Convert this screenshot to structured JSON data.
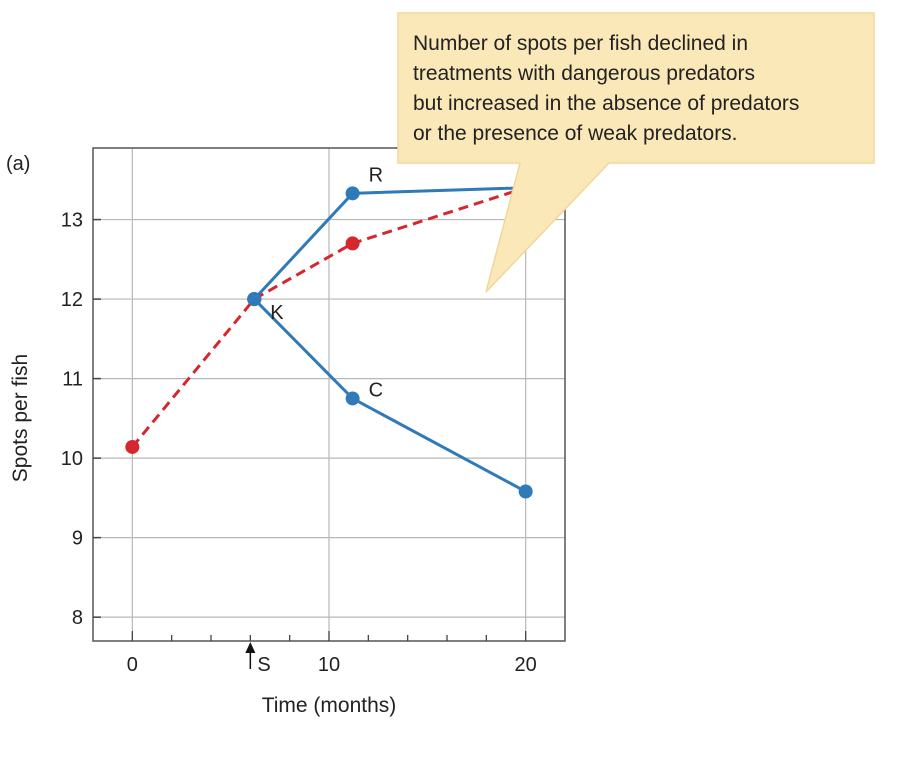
{
  "chart_data": {
    "type": "line",
    "panel_label": "(a)",
    "xlabel": "Time (months)",
    "ylabel": "Spots per fish",
    "xlim": [
      -2,
      22
    ],
    "ylim": [
      7.7,
      13.9
    ],
    "x_ticks": [
      0,
      10,
      20
    ],
    "y_ticks": [
      8,
      9,
      10,
      11,
      12,
      13
    ],
    "marker": {
      "x": 6,
      "label": "S"
    },
    "grid": true,
    "series": [
      {
        "name": "R",
        "color": "#2f7ab8",
        "dash": false,
        "points": [
          [
            6.2,
            12.0
          ],
          [
            11.2,
            13.33
          ],
          [
            20.0,
            13.4
          ]
        ]
      },
      {
        "name": "K",
        "color": "#d6262e",
        "dash": true,
        "points": [
          [
            0.0,
            10.14
          ],
          [
            6.2,
            12.0
          ],
          [
            11.2,
            12.7
          ],
          [
            20.0,
            13.4
          ]
        ]
      },
      {
        "name": "C",
        "color": "#2f7ab8",
        "dash": false,
        "points": [
          [
            6.2,
            12.0
          ],
          [
            11.2,
            10.75
          ],
          [
            20.0,
            9.58
          ]
        ]
      }
    ],
    "annotation": {
      "lines": [
        "Number of spots per fish declined in",
        "treatments with dangerous predators",
        "but increased in the absence of predators",
        "or the presence of weak predators."
      ],
      "fill": "#fbe8b8"
    }
  }
}
